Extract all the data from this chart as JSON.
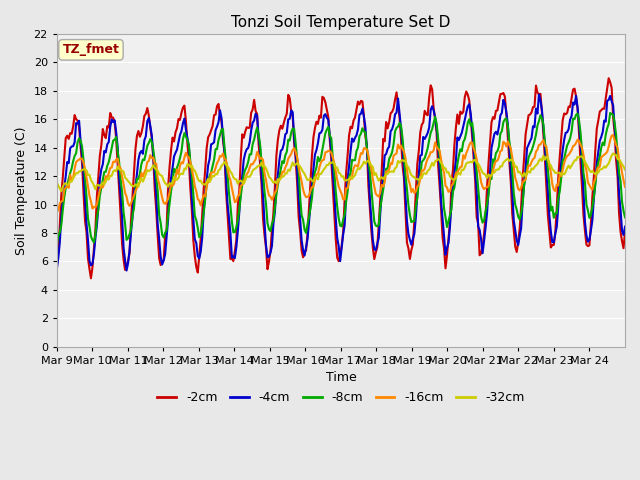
{
  "title": "Tonzi Soil Temperature Set D",
  "xlabel": "Time",
  "ylabel": "Soil Temperature (C)",
  "annotation_text": "TZ_fmet",
  "annotation_bg": "#ffffcc",
  "annotation_fg": "#990000",
  "ylim": [
    0,
    22
  ],
  "yticks": [
    0,
    2,
    4,
    6,
    8,
    10,
    12,
    14,
    16,
    18,
    20,
    22
  ],
  "xtick_positions": [
    0,
    1,
    2,
    3,
    4,
    5,
    6,
    7,
    8,
    9,
    10,
    11,
    12,
    13,
    14,
    15
  ],
  "xtick_labels": [
    "Mar 9",
    "Mar 10",
    "Mar 11",
    "Mar 12",
    "Mar 13",
    "Mar 14",
    "Mar 15",
    "Mar 16",
    "Mar 17",
    "Mar 18",
    "Mar 19",
    "Mar 20",
    "Mar 21",
    "Mar 22",
    "Mar 23",
    "Mar 24"
  ],
  "legend_entries": [
    "-2cm",
    "-4cm",
    "-8cm",
    "-16cm",
    "-32cm"
  ],
  "legend_colors": [
    "#cc0000",
    "#0000cc",
    "#00aa00",
    "#ff8800",
    "#cccc00"
  ],
  "bg_color": "#e8e8e8",
  "plot_bg": "#f0f0f0",
  "grid_color": "#ffffff",
  "line_width": 1.5
}
